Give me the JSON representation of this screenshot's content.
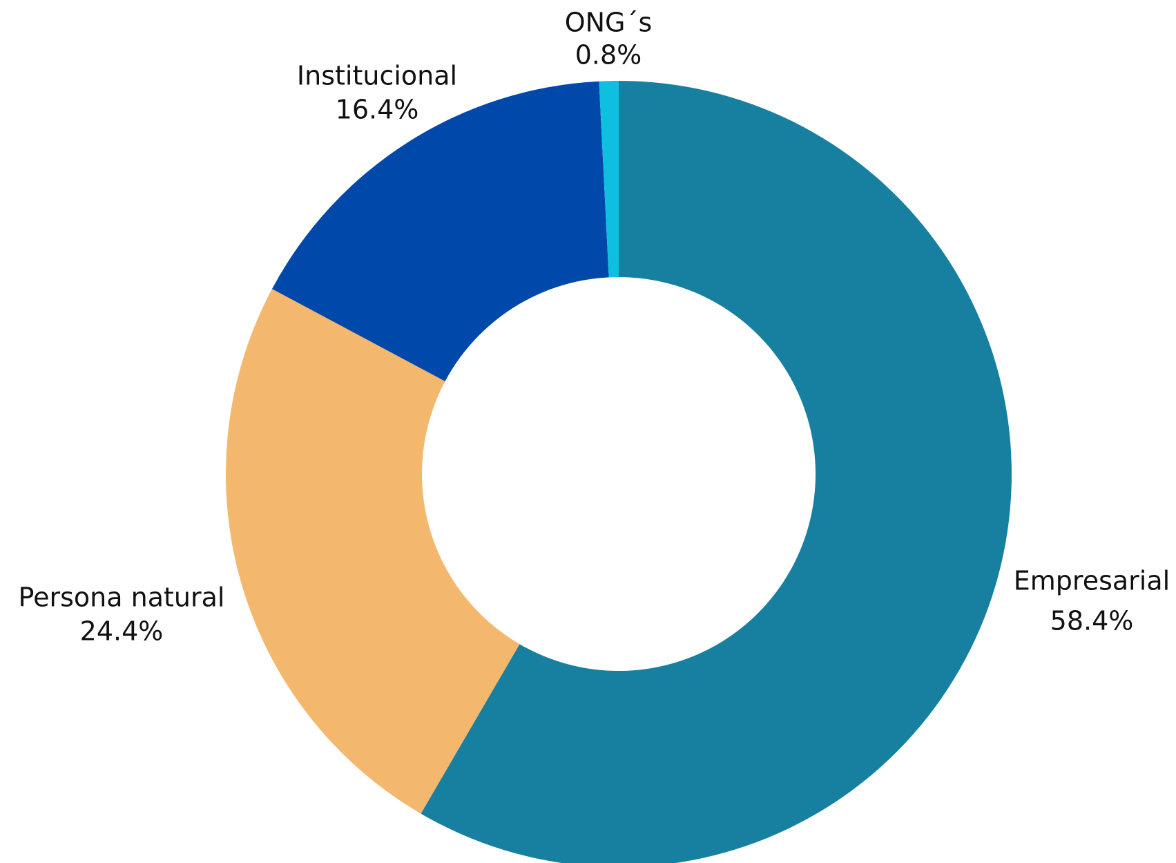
{
  "chart_data": {
    "type": "donut",
    "categories": [
      "Empresarial",
      "Persona natural",
      "Institucional",
      "ONG´s"
    ],
    "values": [
      58.4,
      24.4,
      16.4,
      0.8
    ],
    "value_labels": [
      "58.4%",
      "24.4%",
      "16.4%",
      "0.8%"
    ],
    "colors": [
      "#1780a0",
      "#f3b86e",
      "#0048aa",
      "#0fbfe0"
    ]
  }
}
